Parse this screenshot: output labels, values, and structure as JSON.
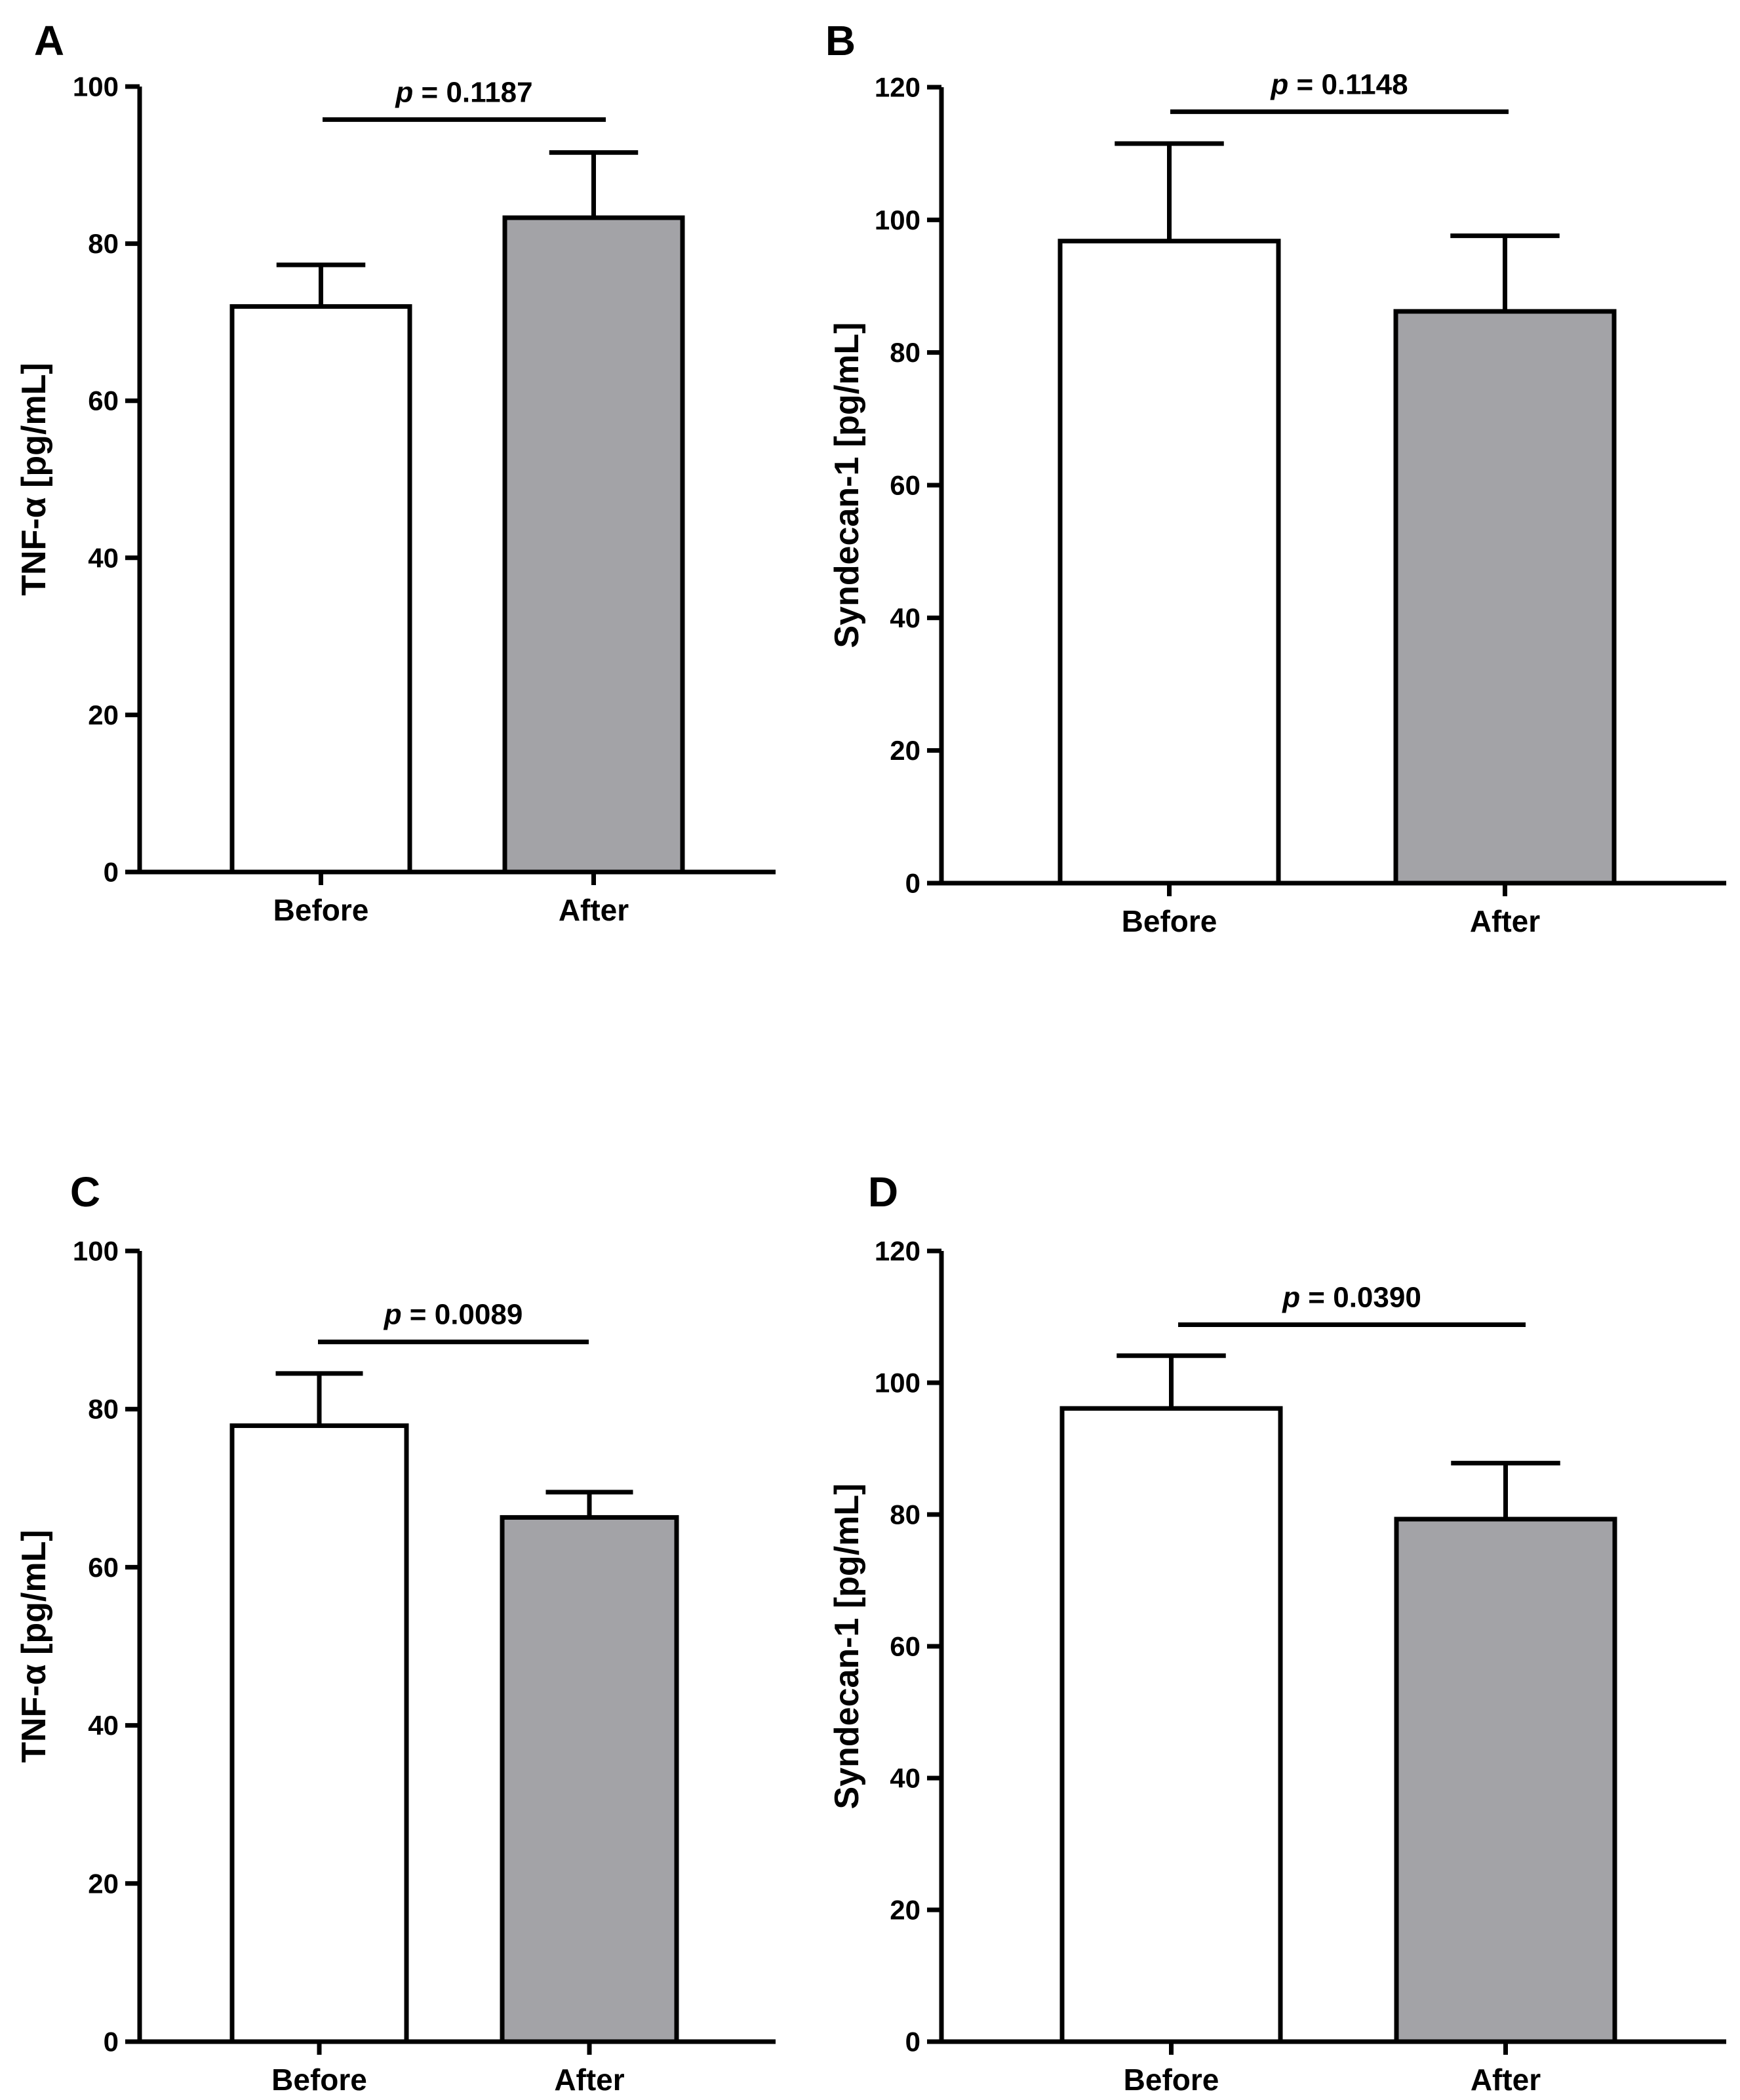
{
  "colors": {
    "before_fill": "#ffffff",
    "after_fill": "#a3a3a7",
    "stroke": "#000000"
  },
  "chart_data": [
    {
      "panel": "A",
      "type": "bar",
      "categories": [
        "Before",
        "After"
      ],
      "values": [
        72,
        83.3
      ],
      "error_upper": [
        77.3,
        91.6
      ],
      "ylabel": "TNF-α [pg/mL]",
      "xlabel": "",
      "ylim": [
        0,
        100
      ],
      "yticks": [
        0,
        20,
        40,
        60,
        80,
        100
      ],
      "significance": {
        "p_symbol": "p",
        "p_text": " = 0.1187",
        "y": 95.8
      }
    },
    {
      "panel": "B",
      "type": "bar",
      "categories": [
        "Before",
        "After"
      ],
      "values": [
        96.8,
        86.2
      ],
      "error_upper": [
        111.5,
        97.6
      ],
      "ylabel": "Syndecan-1 [pg/mL]",
      "xlabel": "",
      "ylim": [
        0,
        120
      ],
      "yticks": [
        0,
        20,
        40,
        60,
        80,
        100,
        120
      ],
      "significance": {
        "p_symbol": "p",
        "p_text": " = 0.1148",
        "y": 116.3
      }
    },
    {
      "panel": "C",
      "type": "bar",
      "categories": [
        "Before",
        "After"
      ],
      "values": [
        77.9,
        66.3
      ],
      "error_upper": [
        84.5,
        69.5
      ],
      "ylabel": "TNF-α [pg/mL]",
      "xlabel": "",
      "ylim": [
        0,
        100
      ],
      "yticks": [
        0,
        20,
        40,
        60,
        80,
        100
      ],
      "significance": {
        "p_symbol": "p",
        "p_text": " = 0.0089",
        "y": 88.5
      }
    },
    {
      "panel": "D",
      "type": "bar",
      "categories": [
        "Before",
        "After"
      ],
      "values": [
        96.1,
        79.3
      ],
      "error_upper": [
        104.1,
        87.8
      ],
      "ylabel": "Syndecan-1 [pg/mL]",
      "xlabel": "",
      "ylim": [
        0,
        120
      ],
      "yticks": [
        0,
        20,
        40,
        60,
        80,
        100,
        120
      ],
      "significance": {
        "p_symbol": "p",
        "p_text": " = 0.0390",
        "y": 108.8
      }
    }
  ]
}
